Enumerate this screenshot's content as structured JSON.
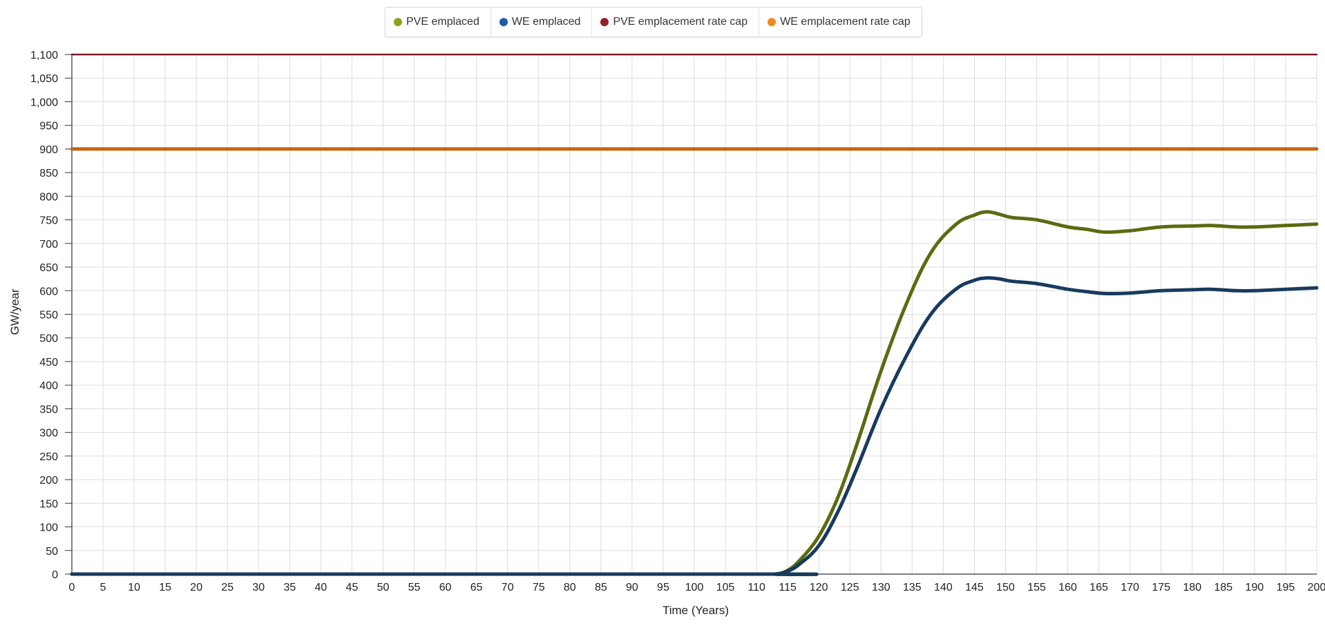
{
  "legend": [
    {
      "label": "PVE emplaced",
      "color": "#84a41b"
    },
    {
      "label": "WE emplaced",
      "color": "#1e5aa6"
    },
    {
      "label": "PVE emplacement rate cap",
      "color": "#96202a"
    },
    {
      "label": "WE emplacement rate cap",
      "color": "#ee8a1e"
    }
  ],
  "chart_data": {
    "type": "line",
    "title": "",
    "xlabel": "Time (Years)",
    "ylabel": "GW/year",
    "xlim": [
      0,
      200
    ],
    "ylim": [
      0,
      1100
    ],
    "x_ticks": [
      0,
      5,
      10,
      15,
      20,
      25,
      30,
      35,
      40,
      45,
      50,
      55,
      60,
      65,
      70,
      75,
      80,
      85,
      90,
      95,
      100,
      105,
      110,
      115,
      120,
      125,
      130,
      135,
      140,
      145,
      150,
      155,
      160,
      165,
      170,
      175,
      180,
      185,
      190,
      195,
      200
    ],
    "y_ticks": [
      0,
      50,
      100,
      150,
      200,
      250,
      300,
      350,
      400,
      450,
      500,
      550,
      600,
      650,
      700,
      750,
      800,
      850,
      900,
      950,
      1000,
      1050,
      1100
    ],
    "grid": true,
    "legend_position": "top-center",
    "series": [
      {
        "name": "PVE emplaced",
        "line_color": "#5a6b10",
        "points": [
          [
            0,
            0
          ],
          [
            110,
            0
          ],
          [
            113,
            0
          ],
          [
            115,
            8
          ],
          [
            117,
            30
          ],
          [
            120,
            80
          ],
          [
            123,
            160
          ],
          [
            126,
            270
          ],
          [
            130,
            430
          ],
          [
            134,
            570
          ],
          [
            138,
            680
          ],
          [
            142,
            740
          ],
          [
            145,
            760
          ],
          [
            147,
            767
          ],
          [
            149,
            762
          ],
          [
            151,
            755
          ],
          [
            155,
            750
          ],
          [
            160,
            735
          ],
          [
            163,
            730
          ],
          [
            166,
            724
          ],
          [
            170,
            727
          ],
          [
            175,
            735
          ],
          [
            180,
            737
          ],
          [
            183,
            738
          ],
          [
            187,
            735
          ],
          [
            190,
            735
          ],
          [
            195,
            738
          ],
          [
            200,
            741
          ]
        ]
      },
      {
        "name": "WE emplaced",
        "line_color": "#183a5e",
        "points": [
          [
            0,
            0
          ],
          [
            110,
            0
          ],
          [
            113,
            0
          ],
          [
            115,
            6
          ],
          [
            117,
            22
          ],
          [
            120,
            60
          ],
          [
            123,
            130
          ],
          [
            126,
            220
          ],
          [
            130,
            350
          ],
          [
            134,
            460
          ],
          [
            138,
            550
          ],
          [
            142,
            603
          ],
          [
            145,
            622
          ],
          [
            147,
            627
          ],
          [
            149,
            625
          ],
          [
            151,
            620
          ],
          [
            155,
            615
          ],
          [
            160,
            603
          ],
          [
            163,
            598
          ],
          [
            166,
            594
          ],
          [
            170,
            595
          ],
          [
            175,
            600
          ],
          [
            180,
            602
          ],
          [
            183,
            603
          ],
          [
            187,
            600
          ],
          [
            190,
            600
          ],
          [
            195,
            603
          ],
          [
            200,
            606
          ]
        ]
      },
      {
        "name": "PVE emplacement rate cap",
        "line_color": "#7e1a22",
        "points": [
          [
            0,
            1100
          ],
          [
            200,
            1100
          ]
        ]
      },
      {
        "name": "WE emplacement rate cap",
        "line_color": "#c56414",
        "points": [
          [
            0,
            900
          ],
          [
            200,
            900
          ]
        ]
      }
    ]
  }
}
